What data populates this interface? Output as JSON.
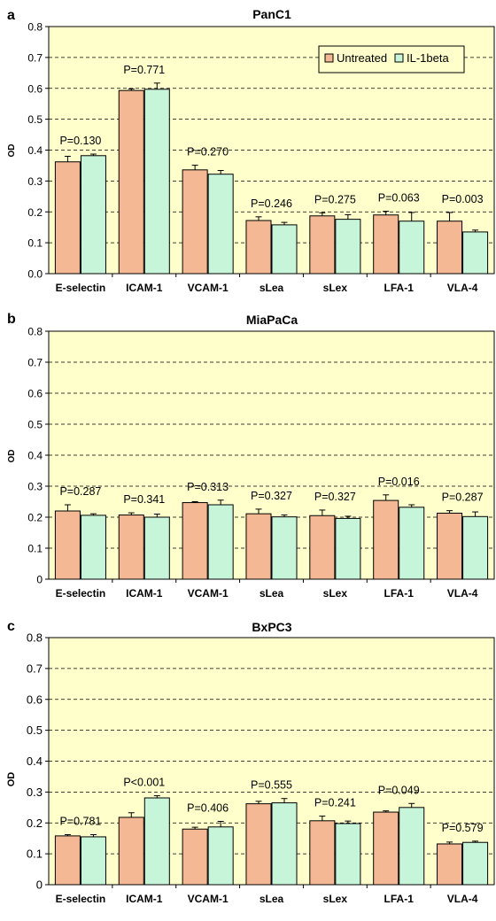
{
  "chart_data": [
    {
      "panel_label": "a",
      "type": "bar",
      "title": "PanC1",
      "ylabel": "OD",
      "ylim": [
        0,
        0.8
      ],
      "yticks": [
        "0.0",
        "0.1",
        "0.2",
        "0.3",
        "0.4",
        "0.5",
        "0.6",
        "0.7",
        "0.8"
      ],
      "grid": true,
      "legend_position": "top-right",
      "categories": [
        "E-selectin",
        "ICAM-1",
        "VCAM-1",
        "sLea",
        "sLex",
        "LFA-1",
        "VLA-4"
      ],
      "series": [
        {
          "name": "Untreated",
          "color": "#f5b894",
          "values": [
            0.362,
            0.593,
            0.336,
            0.172,
            0.187,
            0.19,
            0.17
          ],
          "errors": [
            0.018,
            0.005,
            0.015,
            0.012,
            0.01,
            0.012,
            0.028
          ]
        },
        {
          "name": "IL-1beta",
          "color": "#c6f5d9",
          "values": [
            0.382,
            0.597,
            0.322,
            0.158,
            0.176,
            0.17,
            0.135
          ],
          "errors": [
            0.005,
            0.02,
            0.012,
            0.008,
            0.015,
            0.028,
            0.006
          ]
        }
      ],
      "pvalues": [
        "P=0.130",
        "P=0.771",
        "P=0.270",
        "P=0.246",
        "P=0.275",
        "P=0.063",
        "P=0.003"
      ]
    },
    {
      "panel_label": "b",
      "type": "bar",
      "title": "MiaPaCa",
      "ylabel": "OD",
      "ylim": [
        0,
        0.8
      ],
      "yticks": [
        "0",
        "0.1",
        "0.2",
        "0.3",
        "0.4",
        "0.5",
        "0.6",
        "0.7",
        "0.8"
      ],
      "grid": true,
      "categories": [
        "E-selectin",
        "ICAM-1",
        "VCAM-1",
        "sLea",
        "sLex",
        "LFA-1",
        "VLA-4"
      ],
      "series": [
        {
          "name": "Untreated",
          "color": "#f5b894",
          "values": [
            0.22,
            0.207,
            0.247,
            0.211,
            0.205,
            0.254,
            0.213
          ],
          "errors": [
            0.02,
            0.007,
            0.003,
            0.015,
            0.018,
            0.018,
            0.008
          ]
        },
        {
          "name": "IL-1beta",
          "color": "#c6f5d9",
          "values": [
            0.206,
            0.2,
            0.24,
            0.201,
            0.196,
            0.232,
            0.202
          ],
          "errors": [
            0.005,
            0.01,
            0.015,
            0.006,
            0.007,
            0.008,
            0.015
          ]
        }
      ],
      "pvalues": [
        "P=0.287",
        "P=0.341",
        "P=0.313",
        "P=0.327",
        "P=0.327",
        "P=0.016",
        "P=0.287"
      ]
    },
    {
      "panel_label": "c",
      "type": "bar",
      "title": "BxPC3",
      "ylabel": "OD",
      "ylim": [
        0,
        0.8
      ],
      "yticks": [
        "0",
        "0.1",
        "0.2",
        "0.3",
        "0.4",
        "0.5",
        "0.6",
        "0.7",
        "0.8"
      ],
      "grid": true,
      "categories": [
        "E-selectin",
        "ICAM-1",
        "VCAM-1",
        "sLea",
        "sLex",
        "LFA-1",
        "VLA-4"
      ],
      "series": [
        {
          "name": "Untreated",
          "color": "#f5b894",
          "values": [
            0.158,
            0.218,
            0.18,
            0.262,
            0.207,
            0.235,
            0.132
          ],
          "errors": [
            0.004,
            0.015,
            0.006,
            0.008,
            0.015,
            0.004,
            0.006
          ]
        },
        {
          "name": "IL-1beta",
          "color": "#c6f5d9",
          "values": [
            0.155,
            0.281,
            0.187,
            0.265,
            0.198,
            0.25,
            0.137
          ],
          "errors": [
            0.007,
            0.007,
            0.018,
            0.014,
            0.008,
            0.013,
            0.004
          ]
        }
      ],
      "pvalues": [
        "P=0.781",
        "P<0.001",
        "P=0.406",
        "P=0.555",
        "P=0.241",
        "P=0.049",
        "P=0.579"
      ]
    }
  ]
}
